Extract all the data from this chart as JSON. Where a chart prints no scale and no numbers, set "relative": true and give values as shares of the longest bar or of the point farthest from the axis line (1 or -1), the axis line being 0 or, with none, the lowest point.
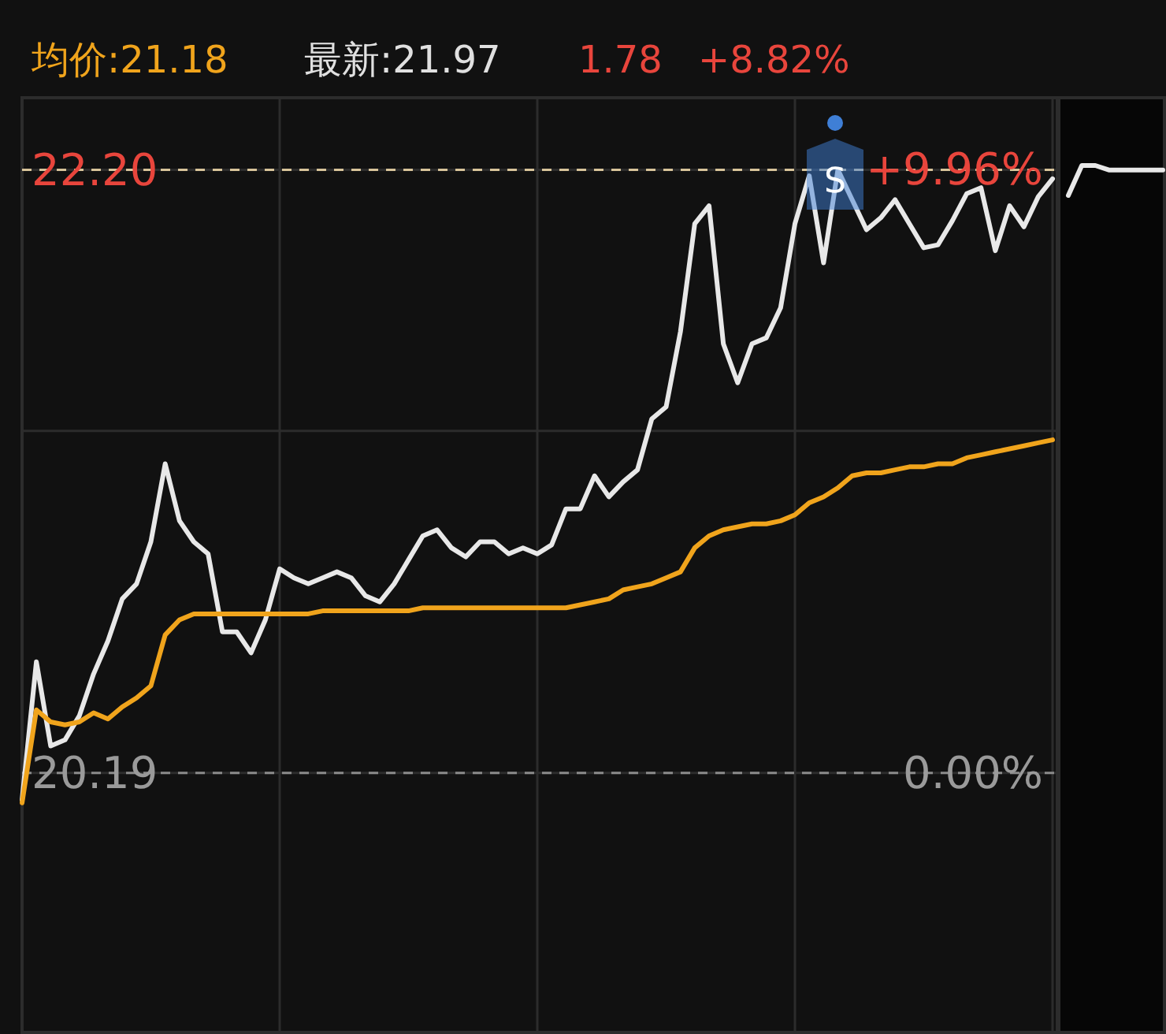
{
  "chart_data": [
    {
      "type": "line",
      "annotations": [
        "均价:21.18",
        "最新:21.97",
        "1.78",
        "+8.82%",
        "S"
      ],
      "categories": [
        null,
        null,
        null,
        null,
        null,
        null,
        null,
        null,
        null,
        null,
        null,
        null,
        null,
        null,
        null,
        null,
        null,
        null,
        null,
        null,
        null,
        null,
        null,
        null,
        null,
        null,
        null,
        null,
        null,
        null,
        null,
        null,
        null,
        null,
        null,
        null,
        null,
        null,
        null,
        null,
        null,
        null,
        null,
        null,
        null,
        null,
        null,
        null,
        null,
        null,
        null,
        null,
        null,
        null,
        null,
        null,
        null,
        null,
        null,
        null,
        null,
        null,
        null,
        null,
        null,
        null,
        null,
        null,
        null,
        null,
        null,
        null,
        null
      ],
      "series": [
        {
          "color": "#e8e8e8",
          "values": [
            20.1,
            20.56,
            20.28,
            20.3,
            20.38,
            20.52,
            20.63,
            20.77,
            20.82,
            20.96,
            21.22,
            21.03,
            20.96,
            20.92,
            20.66,
            20.66,
            20.59,
            20.7,
            20.87,
            20.84,
            20.82,
            20.84,
            20.86,
            20.84,
            20.78,
            20.76,
            20.82,
            20.9,
            20.98,
            21.0,
            20.94,
            20.91,
            20.96,
            20.96,
            20.92,
            20.94,
            20.92,
            20.95,
            21.07,
            21.07,
            21.18,
            21.11,
            21.16,
            21.2,
            21.37,
            21.41,
            21.66,
            22.02,
            22.08,
            21.62,
            21.49,
            21.62,
            21.64,
            21.74,
            22.02,
            22.18,
            21.89,
            22.2,
            22.1,
            22.0,
            22.04,
            22.1,
            22.02,
            21.94,
            21.95,
            22.03,
            22.12,
            22.14,
            21.93,
            22.08,
            22.01,
            22.11,
            22.17
          ]
        },
        {
          "color": "#f0a41c",
          "values": [
            20.09,
            20.4,
            20.36,
            20.35,
            20.36,
            20.39,
            20.37,
            20.41,
            20.44,
            20.48,
            20.65,
            20.7,
            20.72,
            20.72,
            20.72,
            20.72,
            20.72,
            20.72,
            20.72,
            20.72,
            20.72,
            20.73,
            20.73,
            20.73,
            20.73,
            20.73,
            20.73,
            20.73,
            20.74,
            20.74,
            20.74,
            20.74,
            20.74,
            20.74,
            20.74,
            20.74,
            20.74,
            20.74,
            20.74,
            20.75,
            20.76,
            20.77,
            20.8,
            20.81,
            20.82,
            20.84,
            20.86,
            20.94,
            20.98,
            21.0,
            21.01,
            21.02,
            21.02,
            21.03,
            21.05,
            21.09,
            21.11,
            21.14,
            21.18,
            21.19,
            21.19,
            21.2,
            21.21,
            21.21,
            21.22,
            21.22,
            21.24,
            21.25,
            21.26,
            21.27,
            21.28,
            21.29,
            21.3
          ]
        }
      ],
      "ylim": [
        19.32,
        22.44
      ],
      "yticks": [
        20.19,
        {
          "value": 21.33,
          "label": null
        },
        {
          "value": 22.2,
          "label": "22.20"
        }
      ],
      "y2lim": [
        -4.31,
        11.14
      ],
      "y2ticks": [
        {
          "value": 0,
          "label": "0.00%"
        },
        {
          "value": 9.96,
          "label": "+9.96%"
        }
      ],
      "ref_lines": [
        {
          "axis": "y",
          "value": 22.2,
          "color": "#d8c49a",
          "line_style": "dashed"
        },
        {
          "axis": "y",
          "value": 20.19,
          "color": "#8a8a8a",
          "line_style": "dashed"
        }
      ],
      "grid": true,
      "legend": false,
      "line_style": "solid",
      "marker": "none"
    },
    {
      "type": "line",
      "categories": [
        null,
        null,
        null,
        null,
        null,
        null,
        null,
        null
      ],
      "series": [
        {
          "color": "#e8e8e8",
          "values": [
            0,
            1,
            1,
            0.85,
            0.85,
            0.85,
            0.85,
            0.85
          ]
        }
      ],
      "relative": true,
      "line_style": "solid",
      "marker": "none"
    }
  ]
}
